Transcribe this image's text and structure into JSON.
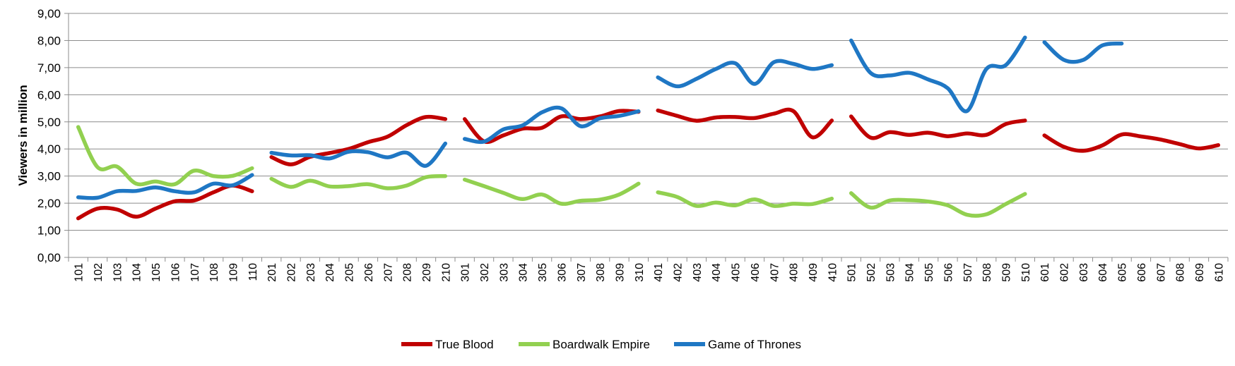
{
  "chart_data": {
    "type": "line",
    "ylabel": "Viewers in million",
    "xlabel": "",
    "ylim": [
      0,
      9
    ],
    "y_ticks": [
      "0,00",
      "1,00",
      "2,00",
      "3,00",
      "4,00",
      "5,00",
      "6,00",
      "7,00",
      "8,00",
      "9,00"
    ],
    "grid": "horizontal",
    "legend_position": "bottom",
    "categories": [
      "101",
      "102",
      "103",
      "104",
      "105",
      "106",
      "107",
      "108",
      "109",
      "110",
      "201",
      "202",
      "203",
      "204",
      "205",
      "206",
      "207",
      "208",
      "209",
      "210",
      "301",
      "302",
      "303",
      "304",
      "305",
      "306",
      "307",
      "308",
      "309",
      "310",
      "401",
      "402",
      "403",
      "404",
      "405",
      "406",
      "407",
      "408",
      "409",
      "410",
      "501",
      "502",
      "503",
      "504",
      "505",
      "506",
      "507",
      "508",
      "509",
      "510",
      "601",
      "602",
      "603",
      "604",
      "605",
      "606",
      "607",
      "608",
      "609",
      "610"
    ],
    "series": [
      {
        "name": "True Blood",
        "color": "#c00000",
        "values": [
          1.44,
          1.8,
          1.77,
          1.5,
          1.8,
          2.07,
          2.1,
          2.4,
          2.65,
          2.44,
          3.7,
          3.43,
          3.71,
          3.85,
          4.0,
          4.25,
          4.45,
          4.88,
          5.18,
          5.1,
          5.1,
          4.28,
          4.5,
          4.75,
          4.78,
          5.2,
          5.1,
          5.2,
          5.4,
          5.37,
          5.42,
          5.22,
          5.04,
          5.16,
          5.18,
          5.14,
          5.3,
          5.4,
          4.43,
          5.05,
          5.2,
          4.42,
          4.62,
          4.52,
          4.6,
          4.47,
          4.57,
          4.52,
          4.92,
          5.05,
          4.5,
          4.08,
          3.93,
          4.13,
          4.53,
          4.46,
          4.35,
          4.18,
          4.02,
          4.14
        ]
      },
      {
        "name": "Boardwalk Empire",
        "color": "#92d050",
        "values": [
          4.81,
          3.33,
          3.35,
          2.72,
          2.8,
          2.7,
          3.2,
          3.0,
          3.01,
          3.29,
          2.9,
          2.6,
          2.83,
          2.62,
          2.63,
          2.7,
          2.55,
          2.65,
          2.96,
          3.0,
          2.87,
          2.63,
          2.38,
          2.15,
          2.32,
          1.98,
          2.09,
          2.13,
          2.32,
          2.72,
          2.4,
          2.23,
          1.9,
          2.02,
          1.92,
          2.14,
          1.9,
          1.98,
          1.97,
          2.17,
          2.37,
          1.84,
          2.1,
          2.11,
          2.06,
          1.92,
          1.57,
          1.59,
          1.97,
          2.34,
          null,
          null,
          null,
          null,
          null,
          null,
          null,
          null,
          null,
          null
        ]
      },
      {
        "name": "Game of Thrones",
        "color": "#1f77c4",
        "values": [
          2.22,
          2.2,
          2.44,
          2.45,
          2.58,
          2.44,
          2.4,
          2.72,
          2.66,
          3.04,
          3.86,
          3.76,
          3.77,
          3.65,
          3.9,
          3.88,
          3.69,
          3.86,
          3.38,
          4.2,
          4.37,
          4.27,
          4.72,
          4.87,
          5.35,
          5.5,
          4.84,
          5.13,
          5.22,
          5.39,
          6.64,
          6.31,
          6.59,
          6.95,
          7.16,
          6.4,
          7.2,
          7.14,
          6.95,
          7.09,
          8.0,
          6.81,
          6.71,
          6.81,
          6.56,
          6.24,
          5.4,
          6.95,
          7.09,
          8.11,
          7.94,
          7.29,
          7.28,
          7.82,
          7.89,
          null,
          null,
          null,
          null,
          null
        ]
      }
    ]
  }
}
